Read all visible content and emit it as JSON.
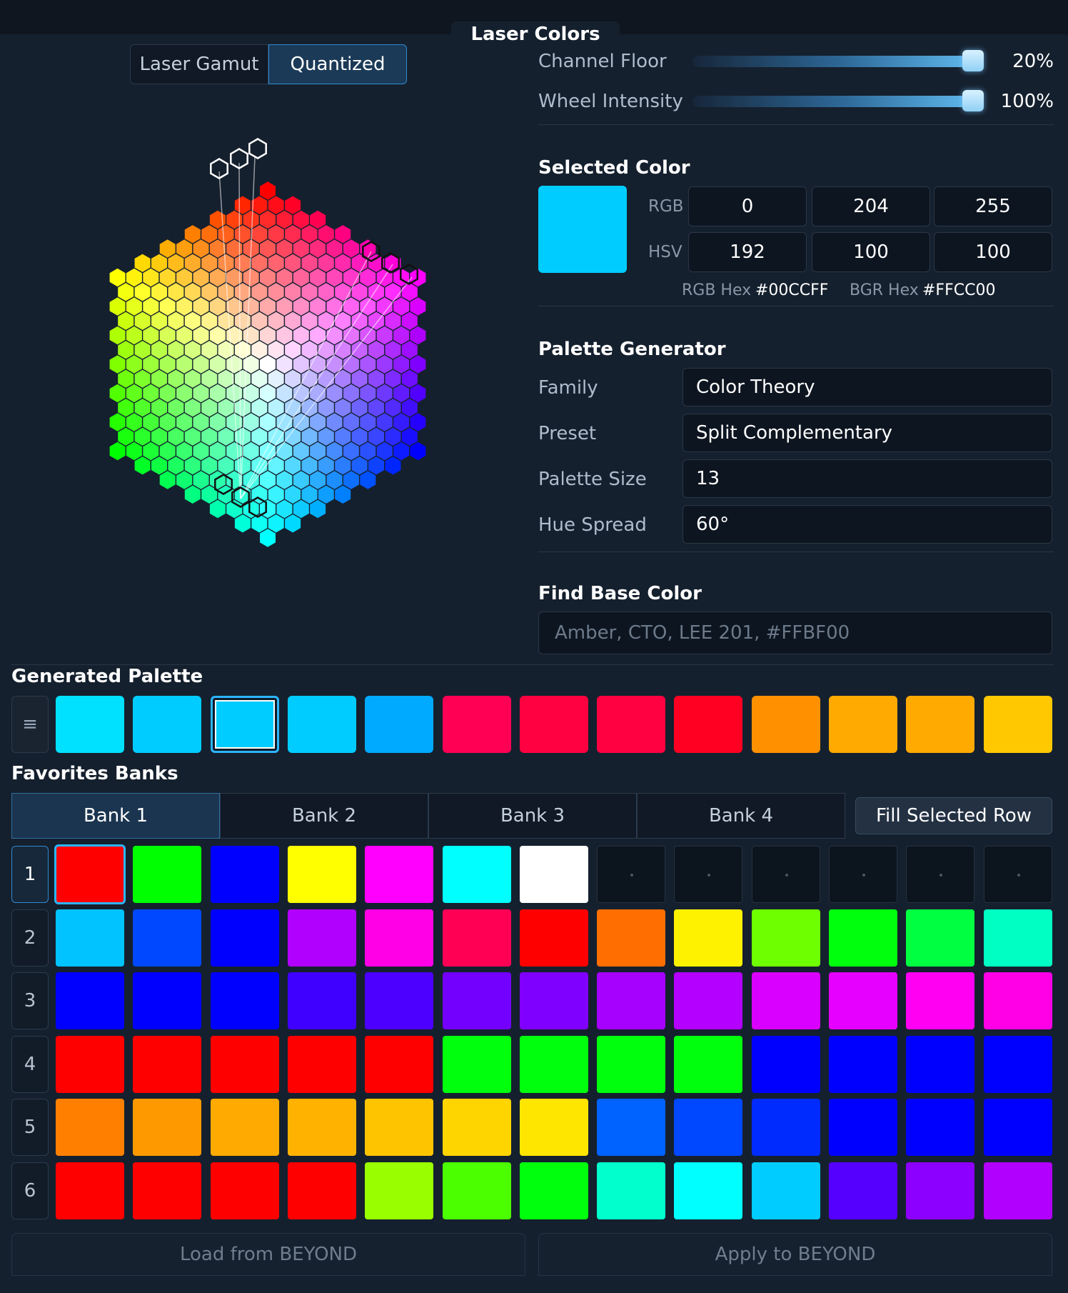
{
  "window": {
    "title": "Laser Colors"
  },
  "mode_toggle": {
    "options": [
      "Laser Gamut",
      "Quantized"
    ],
    "active": 1
  },
  "sliders": [
    {
      "label": "Channel Floor",
      "value": 20,
      "display": "20%"
    },
    {
      "label": "Wheel Intensity",
      "value": 100,
      "display": "100%"
    }
  ],
  "selected_color": {
    "title": "Selected Color",
    "swatch": "#00CCFF",
    "rgb_label": "RGB",
    "hsv_label": "HSV",
    "rgb": [
      "0",
      "204",
      "255"
    ],
    "hsv": [
      "192",
      "100",
      "100"
    ],
    "rgb_hex_label": "RGB Hex",
    "rgb_hex": "#00CCFF",
    "bgr_hex_label": "BGR Hex",
    "bgr_hex": "#FFCC00"
  },
  "palette_generator": {
    "title": "Palette Generator",
    "fields": [
      {
        "label": "Family",
        "value": "Color Theory"
      },
      {
        "label": "Preset",
        "value": "Split Complementary"
      },
      {
        "label": "Palette Size",
        "value": "13"
      },
      {
        "label": "Hue Spread",
        "value": "60°"
      }
    ]
  },
  "find_base": {
    "title": "Find Base Color",
    "placeholder": "Amber, CTO, LEE 201, #FFBF00"
  },
  "generated_palette": {
    "title": "Generated Palette",
    "handle_icon": "drag-handle-icon",
    "selected_index": 2,
    "colors": [
      "#00E1FF",
      "#00CCFF",
      "#00CCFF",
      "#00CCFF",
      "#00AAFF",
      "#FF0055",
      "#FF0040",
      "#FF0040",
      "#FF0022",
      "#FF9100",
      "#FFAA00",
      "#FFAA00",
      "#FFC800"
    ]
  },
  "favorites": {
    "title": "Favorites Banks",
    "tabs": [
      "Bank 1",
      "Bank 2",
      "Bank 3",
      "Bank 4"
    ],
    "active_tab": 0,
    "fill_button": "Fill Selected Row",
    "rows": [
      {
        "label": "1",
        "colors": [
          "#FF0000",
          "#00FF00",
          "#0000FF",
          "#FFFF00",
          "#FF00FF",
          "#00FFFF",
          "#FFFFFF",
          null,
          null,
          null,
          null,
          null,
          null
        ]
      },
      {
        "label": "2",
        "colors": [
          "#00C3FF",
          "#0048FF",
          "#0000FF",
          "#B200FF",
          "#FF00E6",
          "#FF0055",
          "#FF0000",
          "#FF6E00",
          "#FFF200",
          "#6EFF00",
          "#00FF0D",
          "#00FF40",
          "#00FFC3"
        ]
      },
      {
        "label": "3",
        "colors": [
          "#0000FF",
          "#0000FF",
          "#0000FF",
          "#4000FF",
          "#4C00FF",
          "#7300FF",
          "#8000FF",
          "#A600FF",
          "#B300FF",
          "#D900FF",
          "#E600FF",
          "#FF00F2",
          "#FF00E6"
        ]
      },
      {
        "label": "4",
        "colors": [
          "#FF0000",
          "#FF0000",
          "#FF0000",
          "#FF0000",
          "#FF0000",
          "#00FF0D",
          "#00FF0D",
          "#00FF0D",
          "#00FF0D",
          "#0000FF",
          "#0000FF",
          "#0000FF",
          "#0000FF"
        ]
      },
      {
        "label": "5",
        "colors": [
          "#FF8000",
          "#FF9900",
          "#FFAA00",
          "#FFB300",
          "#FFC400",
          "#FFD500",
          "#FFE600",
          "#0062FF",
          "#0048FF",
          "#002BFF",
          "#0000FF",
          "#0000FF",
          "#0000FF"
        ]
      },
      {
        "label": "6",
        "colors": [
          "#FF0000",
          "#FF0000",
          "#FF0000",
          "#FF0000",
          "#99FF00",
          "#4CFF00",
          "#00FF0D",
          "#00FFCC",
          "#00FFFF",
          "#00CCFF",
          "#5500FF",
          "#8C00FF",
          "#B200FF"
        ]
      }
    ],
    "selected_row": 0,
    "selected_cell": 0
  },
  "footer": {
    "load_button": "Load from BEYOND",
    "apply_button": "Apply to BEYOND"
  }
}
